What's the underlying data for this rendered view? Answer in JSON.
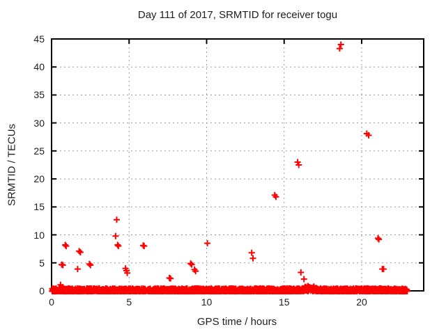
{
  "chart_data": {
    "type": "scatter",
    "title": "Day 111 of 2017, SRMTID for receiver togu",
    "xlabel": "GPS time / hours",
    "ylabel": "SRMTID / TECUs",
    "xlim": [
      0,
      24
    ],
    "ylim": [
      0,
      45
    ],
    "xticks": [
      0,
      5,
      10,
      15,
      20
    ],
    "yticks": [
      0,
      5,
      10,
      15,
      20,
      25,
      30,
      35,
      40,
      45
    ],
    "grid": {
      "visible": true,
      "style": "dotted",
      "color": "#999999"
    },
    "border_color": "#000000",
    "marker": {
      "shape": "plus",
      "color": "#ff0000",
      "size": 9,
      "stroke": 2
    },
    "legend": "none",
    "series_name": "SRMTID",
    "outlier_points": [
      [
        0.58,
        1.1
      ],
      [
        0.65,
        4.7
      ],
      [
        0.73,
        4.6
      ],
      [
        0.88,
        8.2
      ],
      [
        0.94,
        8.0
      ],
      [
        1.68,
        3.9
      ],
      [
        1.78,
        7.1
      ],
      [
        1.86,
        6.9
      ],
      [
        2.44,
        4.8
      ],
      [
        2.51,
        4.6
      ],
      [
        4.13,
        9.8
      ],
      [
        4.2,
        12.7
      ],
      [
        4.26,
        8.2
      ],
      [
        4.31,
        8.0
      ],
      [
        4.77,
        4.0
      ],
      [
        4.83,
        3.6
      ],
      [
        4.88,
        3.2
      ],
      [
        5.91,
        8.1
      ],
      [
        5.97,
        8.0
      ],
      [
        7.6,
        2.3
      ],
      [
        7.67,
        2.2
      ],
      [
        8.97,
        4.9
      ],
      [
        9.04,
        4.7
      ],
      [
        9.22,
        3.8
      ],
      [
        9.29,
        3.5
      ],
      [
        10.05,
        8.5
      ],
      [
        12.91,
        6.8
      ],
      [
        12.99,
        5.8
      ],
      [
        14.39,
        17.1
      ],
      [
        14.47,
        16.8
      ],
      [
        15.87,
        23.0
      ],
      [
        15.94,
        22.5
      ],
      [
        16.08,
        3.3
      ],
      [
        16.28,
        2.1
      ],
      [
        18.58,
        43.3
      ],
      [
        18.66,
        44.0
      ],
      [
        20.33,
        28.1
      ],
      [
        20.45,
        27.8
      ],
      [
        21.05,
        9.4
      ],
      [
        21.11,
        9.2
      ],
      [
        21.33,
        3.9
      ],
      [
        21.41,
        3.9
      ]
    ],
    "baseline_band": {
      "description": "dense near-zero noise band",
      "x_min": 0.02,
      "x_max": 22.95,
      "y_min": -0.07,
      "y_max": 0.45,
      "points": 2700,
      "bump": {
        "x_min": 16.1,
        "x_max": 17.3,
        "extra_y": 0.6
      },
      "seed": 7
    }
  }
}
